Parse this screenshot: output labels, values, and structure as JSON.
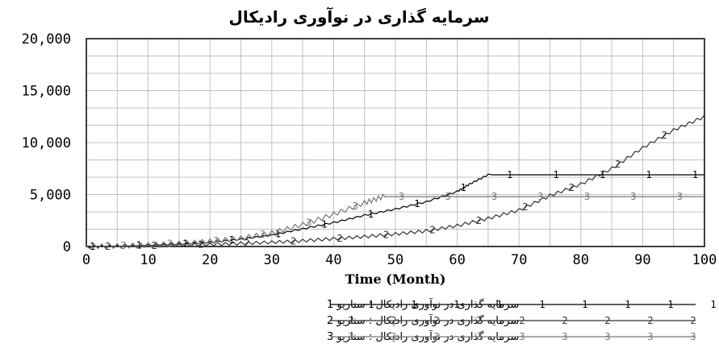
{
  "chart_data": {
    "type": "line",
    "title": "سرمایه گذاری در نوآوری رادیکال",
    "xlabel": "Time (Month)",
    "ylabel": "",
    "xlim": [
      0,
      100
    ],
    "ylim": [
      0,
      20000
    ],
    "x_ticks": [
      "0",
      "10",
      "20",
      "30",
      "40",
      "50",
      "60",
      "70",
      "80",
      "90",
      "100"
    ],
    "y_ticks": [
      "0",
      "5,000",
      "10,000",
      "15,000",
      "20,000"
    ],
    "grid": true,
    "legend_position": "bottom",
    "series": [
      {
        "name": "سرمایه گذاری در نوآوری رادیکال : سناریو 1",
        "marker": "1",
        "color": "#000000",
        "x": [
          0,
          5,
          10,
          15,
          20,
          25,
          30,
          35,
          40,
          45,
          50,
          55,
          60,
          62,
          65,
          70,
          75,
          80,
          85,
          90,
          95,
          100
        ],
        "y": [
          0,
          50,
          150,
          250,
          400,
          700,
          1100,
          1700,
          2300,
          3000,
          3600,
          4300,
          5300,
          6000,
          6900,
          6900,
          6900,
          6900,
          6900,
          6900,
          6900,
          6900
        ]
      },
      {
        "name": "سرمایه گذاری در نوآوری رادیکال : سناریو 2",
        "marker": "2",
        "color": "#333333",
        "x": [
          0,
          5,
          10,
          15,
          20,
          25,
          30,
          35,
          40,
          45,
          50,
          55,
          60,
          65,
          70,
          75,
          80,
          85,
          90,
          95,
          100
        ],
        "y": [
          0,
          20,
          60,
          120,
          200,
          300,
          400,
          550,
          750,
          950,
          1200,
          1500,
          2000,
          2700,
          3500,
          4900,
          6000,
          7500,
          9500,
          11200,
          12500
        ]
      },
      {
        "name": "سرمایه گذاری در نوآوری رادیکال : سناریو 3",
        "marker": "3",
        "color": "#777777",
        "x": [
          0,
          5,
          10,
          15,
          20,
          25,
          30,
          35,
          40,
          45,
          48,
          50,
          55,
          60,
          65,
          70,
          75,
          80,
          85,
          90,
          95,
          100
        ],
        "y": [
          0,
          50,
          150,
          300,
          500,
          800,
          1300,
          2100,
          3100,
          4200,
          4800,
          4800,
          4800,
          4800,
          4800,
          4800,
          4800,
          4800,
          4800,
          4800,
          4800,
          4800
        ]
      }
    ]
  }
}
